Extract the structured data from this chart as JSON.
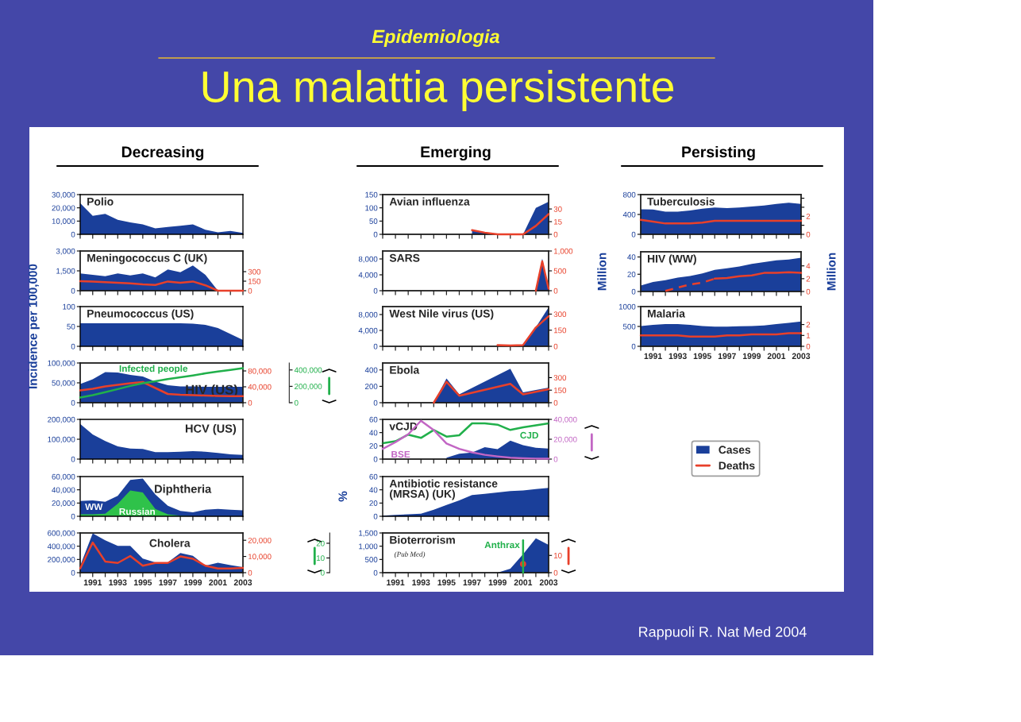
{
  "chart_data": [
    {
      "type": "other",
      "title": "Epidemiologia",
      "subtitle": "Una malattia persistente",
      "annotations": [
        "Decreasing",
        "Emerging",
        "Persisting",
        "Rappuoli R. Nat Med 2004"
      ]
    },
    {
      "type": "area",
      "title": "Polio",
      "x": [
        1990,
        1991,
        1992,
        1993,
        1994,
        1995,
        1996,
        1997,
        1998,
        1999,
        2000,
        2001,
        2002,
        2003
      ],
      "xlim": [
        1990,
        2003
      ],
      "xticks": [
        {
          "value": 1990,
          "label": null
        },
        1991,
        {
          "value": 1992,
          "label": null
        },
        1993,
        {
          "value": 1994,
          "label": null
        },
        1995,
        {
          "value": 1996,
          "label": null
        },
        1997,
        {
          "value": 1998,
          "label": null
        },
        1999,
        {
          "value": 2000,
          "label": null
        },
        2001,
        {
          "value": 2002,
          "label": null
        },
        2003
      ],
      "ylim": [
        0,
        30000
      ],
      "yticks": [
        0,
        {
          "value": 10000,
          "label": "10,000"
        },
        {
          "value": 20000,
          "label": "20,000"
        },
        {
          "value": 30000,
          "label": "30,000"
        }
      ],
      "tick_labels": "y",
      "series": [
        {
          "color": "#1a3f9a",
          "values": [
            23500,
            14000,
            15500,
            11000,
            9000,
            7500,
            4500,
            5500,
            6500,
            7500,
            3500,
            1500,
            2500,
            1000
          ]
        }
      ]
    },
    {
      "type": "area",
      "title": "Meningococcus C (UK)",
      "x": [
        1990,
        1991,
        1992,
        1993,
        1994,
        1995,
        1996,
        1997,
        1998,
        1999,
        2000,
        2001,
        2002,
        2003
      ],
      "xlim": [
        1990,
        2003
      ],
      "xticks": [
        {
          "value": 1990,
          "label": null
        },
        1991,
        {
          "value": 1992,
          "label": null
        },
        1993,
        {
          "value": 1994,
          "label": null
        },
        1995,
        {
          "value": 1996,
          "label": null
        },
        1997,
        {
          "value": 1998,
          "label": null
        },
        1999,
        {
          "value": 2000,
          "label": null
        },
        2001,
        {
          "value": 2002,
          "label": null
        },
        2003
      ],
      "ylim": [
        0,
        3000
      ],
      "yticks": [
        0,
        {
          "value": 1500,
          "label": "1,500"
        },
        {
          "value": 3000,
          "label": "3,000"
        }
      ],
      "y2lim": [
        0,
        625
      ],
      "y2ticks": [
        0,
        150,
        300
      ],
      "tick_labels": "y",
      "series": [
        {
          "color": "#1a3f9a",
          "values": [
            1300,
            1200,
            1100,
            1300,
            1150,
            1300,
            1000,
            1600,
            1400,
            1900,
            1200,
            0,
            0,
            0
          ]
        },
        {
          "type": "line",
          "axis": "y2",
          "color": "#e8402a",
          "values": [
            150,
            145,
            135,
            125,
            115,
            100,
            90,
            145,
            125,
            145,
            85,
            0,
            0,
            0
          ]
        }
      ]
    },
    {
      "type": "area",
      "title": "Pneumococcus (US)",
      "ylabel": "Incidence per 100,000",
      "x": [
        1990,
        1991,
        1992,
        1993,
        1994,
        1995,
        1996,
        1997,
        1998,
        1999,
        2000,
        2001,
        2002,
        2003
      ],
      "xlim": [
        1990,
        2003
      ],
      "xticks": [
        {
          "value": 1990,
          "label": null
        },
        1991,
        {
          "value": 1992,
          "label": null
        },
        1993,
        {
          "value": 1994,
          "label": null
        },
        1995,
        {
          "value": 1996,
          "label": null
        },
        1997,
        {
          "value": 1998,
          "label": null
        },
        1999,
        {
          "value": 2000,
          "label": null
        },
        2001,
        {
          "value": 2002,
          "label": null
        },
        2003
      ],
      "ylim": [
        0,
        100
      ],
      "yticks": [
        0,
        50,
        100
      ],
      "tick_labels": "y",
      "series": [
        {
          "color": "#1a3f9a",
          "values": [
            58,
            58,
            58,
            58,
            58,
            58,
            58,
            58,
            58,
            57,
            54,
            46,
            31,
            16
          ]
        }
      ]
    },
    {
      "type": "area",
      "title": "HIV (US)",
      "x": [
        1990,
        1991,
        1992,
        1993,
        1994,
        1995,
        1996,
        1997,
        1998,
        1999,
        2000,
        2001,
        2002,
        2003
      ],
      "xlim": [
        1990,
        2003
      ],
      "xticks": [
        {
          "value": 1990,
          "label": null
        },
        1991,
        {
          "value": 1992,
          "label": null
        },
        1993,
        {
          "value": 1994,
          "label": null
        },
        1995,
        {
          "value": 1996,
          "label": null
        },
        1997,
        {
          "value": 1998,
          "label": null
        },
        1999,
        {
          "value": 2000,
          "label": null
        },
        2001,
        {
          "value": 2002,
          "label": null
        },
        2003
      ],
      "ylim": [
        0,
        100000
      ],
      "yticks": [
        0,
        {
          "value": 50000,
          "label": "50,000"
        },
        {
          "value": 100000,
          "label": "100,000"
        }
      ],
      "y2lim": [
        0,
        100000
      ],
      "y2ticks": [
        0,
        {
          "value": 40000,
          "label": "40,000"
        },
        {
          "value": 80000,
          "label": "80,000"
        }
      ],
      "y3lim": [
        0,
        485000
      ],
      "y3ticks": [
        0,
        {
          "value": 200000,
          "label": "200,000"
        },
        {
          "value": 400000,
          "label": "400,000"
        }
      ],
      "tick_labels": "y",
      "series": [
        {
          "color": "#1a3f9a",
          "values": [
            47000,
            59000,
            77000,
            76000,
            70000,
            66000,
            53000,
            44000,
            41000,
            41000,
            40000,
            40000,
            40000,
            40000
          ]
        },
        {
          "type": "line",
          "axis": "y2",
          "color": "#e8402a",
          "values": [
            31000,
            35000,
            41000,
            45000,
            49000,
            52000,
            37000,
            22000,
            20000,
            19000,
            18000,
            17000,
            16500,
            16500
          ]
        },
        {
          "type": "line",
          "axis": "y3",
          "name": "Infected people",
          "color": "#21b04b",
          "values": [
            64000,
            93000,
            128000,
            166000,
            205000,
            237000,
            262000,
            288000,
            310000,
            333000,
            358000,
            381000,
            400000,
            422000
          ]
        }
      ]
    },
    {
      "type": "area",
      "title": "HCV (US)",
      "x": [
        1990,
        1991,
        1992,
        1993,
        1994,
        1995,
        1996,
        1997,
        1998,
        1999,
        2000,
        2001,
        2002,
        2003
      ],
      "xlim": [
        1990,
        2003
      ],
      "xticks": [
        {
          "value": 1990,
          "label": null
        },
        1991,
        {
          "value": 1992,
          "label": null
        },
        1993,
        {
          "value": 1994,
          "label": null
        },
        1995,
        {
          "value": 1996,
          "label": null
        },
        1997,
        {
          "value": 1998,
          "label": null
        },
        1999,
        {
          "value": 2000,
          "label": null
        },
        2001,
        {
          "value": 2002,
          "label": null
        },
        2003
      ],
      "ylim": [
        0,
        200000
      ],
      "yticks": [
        0,
        {
          "value": 100000,
          "label": "100,000"
        },
        {
          "value": 200000,
          "label": "200,000"
        }
      ],
      "tick_labels": "y",
      "series": [
        {
          "color": "#1a3f9a",
          "values": [
            177000,
            124000,
            91000,
            64000,
            53000,
            51000,
            35000,
            35000,
            37000,
            40000,
            37000,
            31000,
            24000,
            21000
          ]
        }
      ]
    },
    {
      "type": "area",
      "title": "Diphtheria",
      "x": [
        1990,
        1991,
        1992,
        1993,
        1994,
        1995,
        1996,
        1997,
        1998,
        1999,
        2000,
        2001,
        2002,
        2003
      ],
      "xlim": [
        1990,
        2003
      ],
      "xticks": [
        {
          "value": 1990,
          "label": null
        },
        1991,
        {
          "value": 1992,
          "label": null
        },
        1993,
        {
          "value": 1994,
          "label": null
        },
        1995,
        {
          "value": 1996,
          "label": null
        },
        1997,
        {
          "value": 1998,
          "label": null
        },
        1999,
        {
          "value": 2000,
          "label": null
        },
        2001,
        {
          "value": 2002,
          "label": null
        },
        2003
      ],
      "ylim": [
        0,
        60000
      ],
      "yticks": [
        0,
        {
          "value": 20000,
          "label": "20,000"
        },
        {
          "value": 40000,
          "label": "40,000"
        },
        {
          "value": 60000,
          "label": "60,000"
        }
      ],
      "tick_labels": "y",
      "series": [
        {
          "name": "WW",
          "color": "#1a3f9a",
          "values": [
            23000,
            24000,
            22000,
            31000,
            55000,
            57000,
            33000,
            16000,
            8000,
            6000,
            10000,
            11000,
            10000,
            9000
          ]
        },
        {
          "name": "Russian",
          "color": "#2fc24a",
          "values": [
            3000,
            3000,
            4000,
            19000,
            39000,
            36000,
            11000,
            3000,
            1000,
            0,
            0,
            0,
            0,
            0
          ]
        }
      ]
    },
    {
      "type": "area",
      "title": "Cholera",
      "x": [
        1990,
        1991,
        1992,
        1993,
        1994,
        1995,
        1996,
        1997,
        1998,
        1999,
        2000,
        2001,
        2002,
        2003
      ],
      "xlim": [
        1990,
        2003
      ],
      "xticks": [
        {
          "value": 1990,
          "label": null
        },
        1991,
        {
          "value": 1992,
          "label": null
        },
        1993,
        {
          "value": 1994,
          "label": null
        },
        1995,
        {
          "value": 1996,
          "label": null
        },
        1997,
        {
          "value": 1998,
          "label": null
        },
        1999,
        {
          "value": 2000,
          "label": null
        },
        2001,
        {
          "value": 2002,
          "label": null
        },
        2003
      ],
      "ylim": [
        0,
        600000
      ],
      "yticks": [
        0,
        {
          "value": 200000,
          "label": "200,000"
        },
        {
          "value": 400000,
          "label": "400,000"
        },
        {
          "value": 600000,
          "label": "600,000"
        }
      ],
      "y2lim": [
        0,
        24500
      ],
      "y2ticks": [
        0,
        {
          "value": 10000,
          "label": "10,000"
        },
        {
          "value": 20000,
          "label": "20,000"
        }
      ],
      "series": [
        {
          "color": "#1a3f9a",
          "values": [
            106000,
            595000,
            490000,
            404000,
            404000,
            213000,
            157000,
            157000,
            298000,
            255000,
            106000,
            149000,
            115000,
            85000
          ]
        },
        {
          "type": "line",
          "axis": "y2",
          "color": "#e8402a",
          "values": [
            2600,
            18600,
            6900,
            6000,
            10300,
            4300,
            6000,
            6000,
            10000,
            8600,
            4300,
            2600,
            2600,
            2900
          ]
        }
      ]
    },
    {
      "type": "area",
      "title": "Avian influenza",
      "xlim": [
        1990,
        2003
      ],
      "xticks": [
        {
          "value": 1990,
          "label": null
        },
        1991,
        {
          "value": 1992,
          "label": null
        },
        1993,
        {
          "value": 1994,
          "label": null
        },
        1995,
        {
          "value": 1996,
          "label": null
        },
        1997,
        {
          "value": 1998,
          "label": null
        },
        1999,
        {
          "value": 2000,
          "label": null
        },
        2001,
        {
          "value": 2002,
          "label": null
        },
        2003
      ],
      "ylim": [
        0,
        150
      ],
      "yticks": [
        0,
        50,
        100,
        150
      ],
      "y2lim": [
        0,
        47
      ],
      "y2ticks": [
        0,
        15,
        30
      ],
      "tick_labels": "y",
      "series": [
        {
          "color": "#1a3f9a",
          "x": [
            1997,
            1998,
            1999,
            2000,
            2001,
            2002,
            2003
          ],
          "values": [
            15,
            5,
            0,
            0,
            0,
            100,
            123
          ]
        },
        {
          "type": "line",
          "axis": "y2",
          "color": "#e8402a",
          "x": [
            1997,
            1998,
            1999,
            2000,
            2001,
            2002,
            2003
          ],
          "values": [
            5,
            2,
            0,
            0,
            0,
            10,
            24
          ]
        }
      ]
    },
    {
      "type": "area",
      "title": "SARS",
      "xlim": [
        1990,
        2003
      ],
      "xticks": [
        {
          "value": 1990,
          "label": null
        },
        1991,
        {
          "value": 1992,
          "label": null
        },
        1993,
        {
          "value": 1994,
          "label": null
        },
        1995,
        {
          "value": 1996,
          "label": null
        },
        1997,
        {
          "value": 1998,
          "label": null
        },
        1999,
        {
          "value": 2000,
          "label": null
        },
        2001,
        {
          "value": 2002,
          "label": null
        },
        2003
      ],
      "ylim": [
        0,
        10000
      ],
      "yticks": [
        0,
        {
          "value": 4000,
          "label": "4,000"
        },
        {
          "value": 8000,
          "label": "8,000"
        }
      ],
      "y2lim": [
        0,
        1000
      ],
      "y2ticks": [
        0,
        500,
        {
          "value": 1000,
          "label": "1,000"
        }
      ],
      "tick_labels": "y",
      "series": [
        {
          "color": "#1a3f9a",
          "x": [
            2002,
            2002.5,
            2003
          ],
          "values": [
            0,
            8100,
            400
          ]
        },
        {
          "type": "line",
          "axis": "y2",
          "color": "#e8402a",
          "x": [
            2002,
            2002.5,
            2003
          ],
          "values": [
            0,
            740,
            50
          ]
        }
      ]
    },
    {
      "type": "area",
      "title": "West Nile virus (US)",
      "xlim": [
        1990,
        2003
      ],
      "xticks": [
        {
          "value": 1990,
          "label": null
        },
        1991,
        {
          "value": 1992,
          "label": null
        },
        1993,
        {
          "value": 1994,
          "label": null
        },
        1995,
        {
          "value": 1996,
          "label": null
        },
        1997,
        {
          "value": 1998,
          "label": null
        },
        1999,
        {
          "value": 2000,
          "label": null
        },
        2001,
        {
          "value": 2002,
          "label": null
        },
        2003
      ],
      "ylim": [
        0,
        10000
      ],
      "yticks": [
        0,
        {
          "value": 4000,
          "label": "4,000"
        },
        {
          "value": 8000,
          "label": "8,000"
        }
      ],
      "y2lim": [
        0,
        370
      ],
      "y2ticks": [
        0,
        150,
        300
      ],
      "tick_labels": "y",
      "series": [
        {
          "color": "#1a3f9a",
          "x": [
            1999,
            2000,
            2001,
            2002,
            2003
          ],
          "values": [
            0,
            0,
            0,
            4800,
            9800
          ]
        },
        {
          "type": "line",
          "axis": "y2",
          "color": "#e8402a",
          "x": [
            1999,
            2000,
            2001,
            2002,
            2003
          ],
          "values": [
            12,
            7,
            12,
            175,
            280
          ]
        }
      ]
    },
    {
      "type": "area",
      "title": "Ebola",
      "xlim": [
        1990,
        2003
      ],
      "xticks": [
        {
          "value": 1990,
          "label": null
        },
        1991,
        {
          "value": 1992,
          "label": null
        },
        1993,
        {
          "value": 1994,
          "label": null
        },
        1995,
        {
          "value": 1996,
          "label": null
        },
        1997,
        {
          "value": 1998,
          "label": null
        },
        1999,
        {
          "value": 2000,
          "label": null
        },
        2001,
        {
          "value": 2002,
          "label": null
        },
        2003
      ],
      "ylim": [
        0,
        485
      ],
      "yticks": [
        0,
        200,
        400
      ],
      "y2lim": [
        0,
        475
      ],
      "y2ticks": [
        0,
        150,
        300
      ],
      "tick_labels": "y",
      "series": [
        {
          "color": "#1a3f9a",
          "x": [
            1994,
            1995,
            1996,
            2000,
            2001,
            2003
          ],
          "values": [
            0,
            295,
            103,
            415,
            126,
            184
          ]
        },
        {
          "type": "line",
          "axis": "y2",
          "color": "#e8402a",
          "x": [
            1994,
            1995,
            1996,
            2000,
            2001,
            2003
          ],
          "values": [
            0,
            250,
            84,
            225,
            100,
            162
          ]
        }
      ]
    },
    {
      "type": "area",
      "title": "vCJD",
      "x": [
        1990,
        1991,
        1992,
        1993,
        1994,
        1995,
        1996,
        1997,
        1998,
        1999,
        2000,
        2001,
        2002,
        2003
      ],
      "xlim": [
        1990,
        2003
      ],
      "xticks": [
        {
          "value": 1990,
          "label": null
        },
        1991,
        {
          "value": 1992,
          "label": null
        },
        1993,
        {
          "value": 1994,
          "label": null
        },
        1995,
        {
          "value": 1996,
          "label": null
        },
        1997,
        {
          "value": 1998,
          "label": null
        },
        1999,
        {
          "value": 2000,
          "label": null
        },
        2001,
        {
          "value": 2002,
          "label": null
        },
        2003
      ],
      "ylim": [
        0,
        60
      ],
      "yticks": [
        0,
        20,
        40,
        60
      ],
      "y2lim": [
        0,
        40000
      ],
      "y2ticks": [
        0,
        {
          "value": 20000,
          "label": "20,000"
        },
        {
          "value": 40000,
          "label": "40,000"
        }
      ],
      "tick_labels": "y",
      "series": [
        {
          "color": "#1a3f9a",
          "x": [
            1995,
            1996,
            1997,
            1998,
            1999,
            2000,
            2001,
            2002,
            2003
          ],
          "values": [
            2,
            8,
            10,
            18,
            15,
            28,
            21,
            17,
            16
          ]
        },
        {
          "type": "line",
          "name": "CJD",
          "color": "#21b04b",
          "values": [
            24,
            27,
            37,
            32,
            44,
            34,
            36,
            54,
            54,
            52,
            44,
            48,
            51,
            54
          ]
        },
        {
          "type": "line",
          "axis": "y2",
          "name": "BSE",
          "color": "#c266c4",
          "values": [
            10300,
            17000,
            25000,
            38600,
            29200,
            15700,
            10300,
            6800,
            4300,
            2700,
            1350,
            800,
            500,
            500
          ]
        }
      ]
    },
    {
      "type": "area",
      "title": "Antibiotic resistance\n(MRSA) (UK)",
      "ylabel": "%",
      "x": [
        1990,
        1991,
        1992,
        1993,
        1994,
        1995,
        1996,
        1997,
        1998,
        1999,
        2000,
        2001,
        2002,
        2003
      ],
      "xlim": [
        1990,
        2003
      ],
      "xticks": [
        {
          "value": 1990,
          "label": null
        },
        1991,
        {
          "value": 1992,
          "label": null
        },
        1993,
        {
          "value": 1994,
          "label": null
        },
        1995,
        {
          "value": 1996,
          "label": null
        },
        1997,
        {
          "value": 1998,
          "label": null
        },
        1999,
        {
          "value": 2000,
          "label": null
        },
        2001,
        {
          "value": 2002,
          "label": null
        },
        2003
      ],
      "ylim": [
        0,
        60
      ],
      "yticks": [
        0,
        20,
        40,
        60
      ],
      "tick_labels": "y",
      "series": [
        {
          "color": "#1a3f9a",
          "values": [
            1,
            2,
            3,
            4,
            10,
            17,
            24,
            32,
            34,
            36,
            38,
            39,
            41,
            43
          ]
        }
      ]
    },
    {
      "type": "area",
      "title": "Bioterrorism",
      "subtitle": "(Pub Med)",
      "x": [
        1990,
        1991,
        1992,
        1993,
        1994,
        1995,
        1996,
        1997,
        1998,
        1999,
        2000,
        2001,
        2002,
        2003
      ],
      "xlim": [
        1990,
        2003
      ],
      "xticks": [
        {
          "value": 1990,
          "label": null
        },
        1991,
        {
          "value": 1992,
          "label": null
        },
        1993,
        {
          "value": 1994,
          "label": null
        },
        1995,
        {
          "value": 1996,
          "label": null
        },
        1997,
        {
          "value": 1998,
          "label": null
        },
        1999,
        {
          "value": 2000,
          "label": null
        },
        2001,
        {
          "value": 2002,
          "label": null
        },
        2003
      ],
      "ylim": [
        0,
        1500
      ],
      "yticks": [
        0,
        500,
        {
          "value": 1000,
          "label": "1,000"
        },
        {
          "value": 1500,
          "label": "1,500"
        }
      ],
      "y2lim": [
        0,
        23
      ],
      "y2ticks": [
        0,
        10
      ],
      "y3lim": [
        0,
        27
      ],
      "y3ticks": [
        0,
        10,
        20
      ],
      "series": [
        {
          "color": "#1a3f9a",
          "values": [
            0,
            0,
            0,
            0,
            0,
            0,
            0,
            0,
            0,
            0,
            150,
            700,
            1300,
            1050
          ]
        },
        {
          "type": "line",
          "axis": "y3",
          "name": "Anthrax",
          "color": "#21b04b",
          "x": [
            2001,
            2001
          ],
          "values": [
            0,
            22
          ]
        },
        {
          "type": "scatter",
          "axis": "y2",
          "marker": "circle",
          "color": "#e8402a",
          "x": [
            2001
          ],
          "values": [
            5
          ]
        }
      ]
    },
    {
      "type": "area",
      "title": "Tuberculosis",
      "x": [
        1990,
        1991,
        1992,
        1993,
        1994,
        1995,
        1996,
        1997,
        1998,
        1999,
        2000,
        2001,
        2002,
        2003
      ],
      "xlim": [
        1990,
        2003
      ],
      "xticks": [
        {
          "value": 1990,
          "label": null
        },
        1991,
        {
          "value": 1992,
          "label": null
        },
        1993,
        {
          "value": 1994,
          "label": null
        },
        1995,
        {
          "value": 1996,
          "label": null
        },
        1997,
        {
          "value": 1998,
          "label": null
        },
        1999,
        {
          "value": 2000,
          "label": null
        },
        2001,
        {
          "value": 2002,
          "label": null
        },
        2003
      ],
      "ylim": [
        0,
        800
      ],
      "yticks": [
        0,
        400,
        800
      ],
      "y2lim": [
        0,
        4.4
      ],
      "y2ticks": [
        0,
        {
          "value": 1,
          "label": null
        },
        2,
        {
          "value": 3,
          "label": null
        },
        {
          "value": 4,
          "label": null
        }
      ],
      "tick_labels": "y",
      "series": [
        {
          "color": "#1a3f9a",
          "values": [
            505,
            500,
            455,
            455,
            480,
            515,
            540,
            530,
            540,
            560,
            580,
            613,
            635,
            613
          ]
        },
        {
          "type": "line",
          "axis": "y2",
          "color": "#e8402a",
          "values": [
            1.6,
            1.4,
            1.2,
            1.2,
            1.2,
            1.3,
            1.5,
            1.5,
            1.5,
            1.5,
            1.5,
            1.5,
            1.5,
            1.5
          ]
        }
      ]
    },
    {
      "type": "area",
      "title": "HIV (WW)",
      "ylabel": "Million",
      "y2label": "Million",
      "x": [
        1990,
        1991,
        1992,
        1993,
        1994,
        1995,
        1996,
        1997,
        1998,
        1999,
        2000,
        2001,
        2002,
        2003
      ],
      "xlim": [
        1990,
        2003
      ],
      "xticks": [
        {
          "value": 1990,
          "label": null
        },
        1991,
        {
          "value": 1992,
          "label": null
        },
        1993,
        {
          "value": 1994,
          "label": null
        },
        1995,
        {
          "value": 1996,
          "label": null
        },
        1997,
        {
          "value": 1998,
          "label": null
        },
        1999,
        {
          "value": 2000,
          "label": null
        },
        2001,
        {
          "value": 2002,
          "label": null
        },
        2003
      ],
      "ylim": [
        0,
        46
      ],
      "yticks": [
        0,
        20,
        40
      ],
      "y2lim": [
        0,
        6.2
      ],
      "y2ticks": [
        0,
        2,
        4
      ],
      "tick_labels": "y",
      "series": [
        {
          "color": "#1a3f9a",
          "values": [
            7,
            11,
            13,
            16,
            18,
            21,
            25,
            27,
            29,
            32,
            34,
            36,
            37,
            39
          ]
        },
        {
          "type": "line",
          "axis": "y2",
          "line_style": "dashed",
          "color": "#e8402a",
          "x": [
            1992,
            1993,
            1994,
            1995,
            1996
          ],
          "values": [
            0.1,
            0.6,
            1.1,
            1.4,
            2.0
          ]
        },
        {
          "type": "line",
          "axis": "y2",
          "line_style": "solid",
          "color": "#e8402a",
          "x": [
            1996,
            1997,
            1998,
            1999,
            2000,
            2001,
            2002,
            2003
          ],
          "values": [
            2.0,
            2.1,
            2.4,
            2.5,
            2.9,
            2.9,
            3.0,
            2.9
          ]
        }
      ]
    },
    {
      "type": "area",
      "title": "Malaria",
      "legend": "bottom",
      "x": [
        1990,
        1991,
        1992,
        1993,
        1994,
        1995,
        1996,
        1997,
        1998,
        1999,
        2000,
        2001,
        2002,
        2003
      ],
      "xlim": [
        1990,
        2003
      ],
      "xticks": [
        {
          "value": 1990,
          "label": null
        },
        1991,
        {
          "value": 1992,
          "label": null
        },
        1993,
        {
          "value": 1994,
          "label": null
        },
        1995,
        {
          "value": 1996,
          "label": null
        },
        1997,
        {
          "value": 1998,
          "label": null
        },
        1999,
        {
          "value": 2000,
          "label": null
        },
        2001,
        {
          "value": 2002,
          "label": null
        },
        2003
      ],
      "ylim": [
        0,
        1000
      ],
      "yticks": [
        0,
        500,
        1000
      ],
      "y2lim": [
        0,
        3.65
      ],
      "y2ticks": [
        0,
        1,
        2
      ],
      "series": [
        {
          "name": "Cases",
          "color": "#1a3f9a",
          "values": [
            510,
            540,
            560,
            560,
            540,
            510,
            495,
            495,
            505,
            510,
            525,
            560,
            590,
            625
          ]
        },
        {
          "type": "line",
          "axis": "y2",
          "name": "Deaths",
          "color": "#e8402a",
          "values": [
            1.0,
            1.0,
            1.0,
            1.0,
            0.9,
            0.9,
            0.9,
            1.0,
            1.0,
            1.1,
            1.1,
            1.1,
            1.2,
            1.2
          ]
        }
      ]
    }
  ]
}
